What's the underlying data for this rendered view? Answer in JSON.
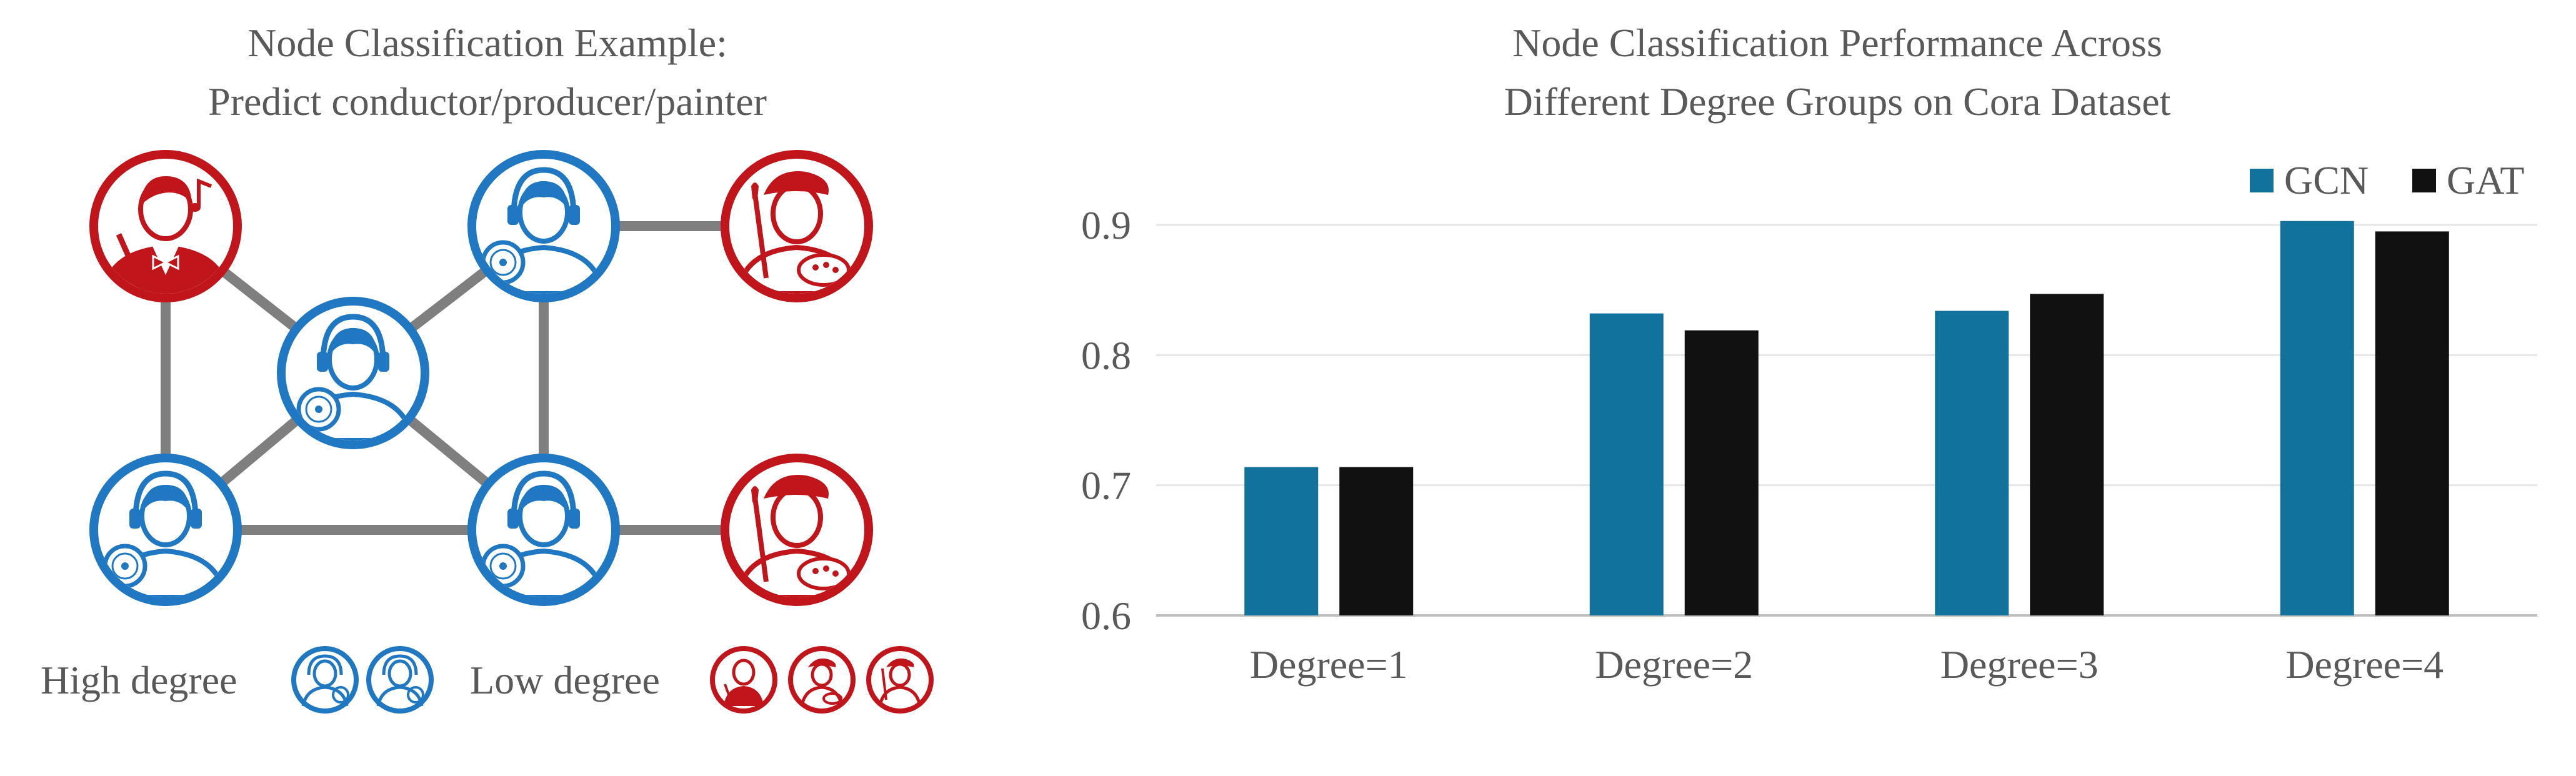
{
  "left_panel": {
    "title_line1": "Node Classification Example:",
    "title_line2": "Predict conductor/producer/painter",
    "legend_high": "High degree",
    "legend_low": "Low degree",
    "colors": {
      "producer": "#1f78c1",
      "other": "#c0161b"
    },
    "nodes": [
      {
        "id": "conductor",
        "role": "conductor",
        "icon": "conductor-icon"
      },
      {
        "id": "producer-top",
        "role": "producer",
        "icon": "producer-icon"
      },
      {
        "id": "painter-top",
        "role": "painter",
        "icon": "painter-icon"
      },
      {
        "id": "producer-center",
        "role": "producer",
        "icon": "producer-icon"
      },
      {
        "id": "producer-bottom-left",
        "role": "producer",
        "icon": "producer-icon"
      },
      {
        "id": "producer-bottom-mid",
        "role": "producer",
        "icon": "producer-icon"
      },
      {
        "id": "painter-bottom",
        "role": "painter",
        "icon": "painter-icon"
      }
    ]
  },
  "chart_data": {
    "type": "bar",
    "title": "Node Classification Performance Across Different Degree Groups on Cora Dataset",
    "title_lines": [
      "Node Classification Performance Across",
      "Different Degree Groups on Cora Dataset"
    ],
    "categories": [
      "Degree=1",
      "Degree=2",
      "Degree=3",
      "Degree=4"
    ],
    "series": [
      {
        "name": "GCN",
        "values": [
          0.714,
          0.832,
          0.834,
          0.903
        ],
        "color": "#11739b"
      },
      {
        "name": "GAT",
        "values": [
          0.714,
          0.819,
          0.847,
          0.895
        ],
        "color": "#111111"
      }
    ],
    "ylim": [
      0.6,
      0.9
    ],
    "yticks": [
      "0.6",
      "0.7",
      "0.8",
      "0.9"
    ],
    "grid": true,
    "legend_position": "top-right",
    "xlabel": "",
    "ylabel": ""
  }
}
